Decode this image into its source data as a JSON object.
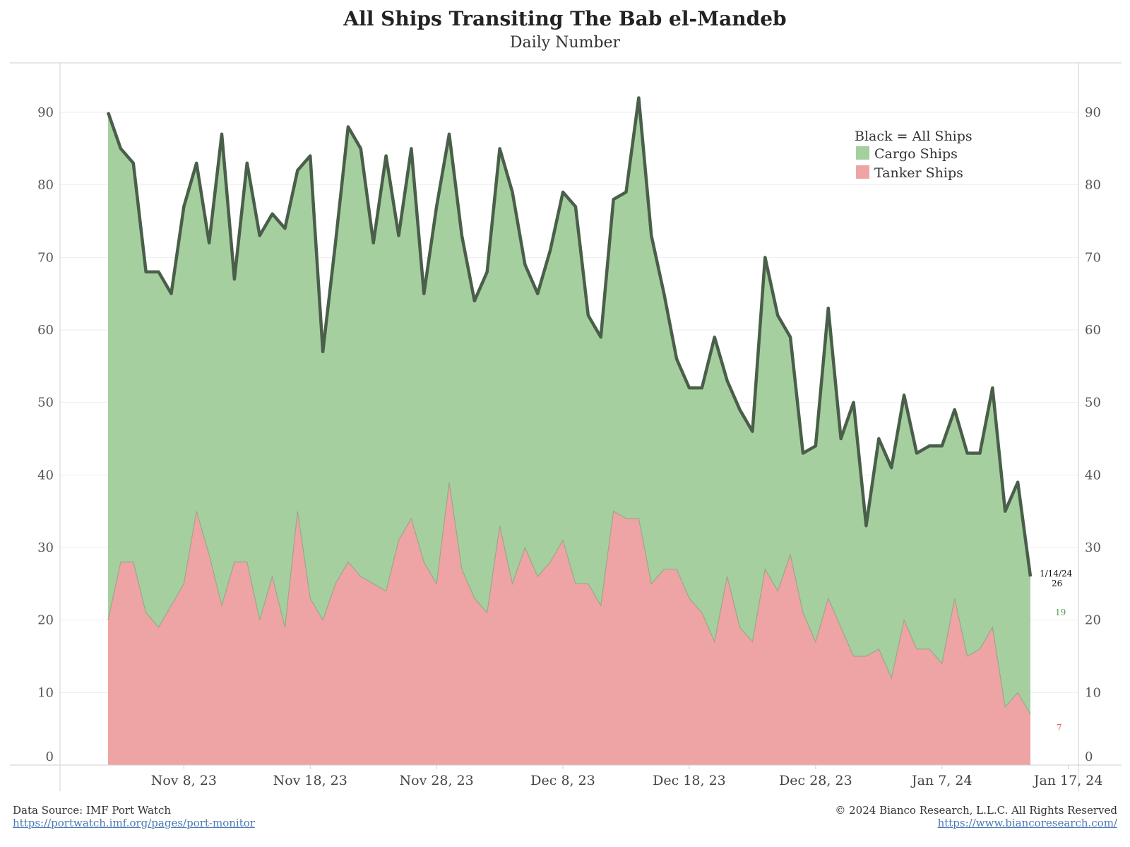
{
  "chart_data": {
    "type": "area",
    "title": "All Ships Transiting The Bab el-Mandeb",
    "subtitle": "Daily Number",
    "x_start": "2023-11-02",
    "x_end": "2024-01-14",
    "xlim": [
      "2023-10-29",
      "2024-01-17"
    ],
    "x_tick_labels": [
      "Nov 8, 23",
      "Nov 18, 23",
      "Nov 28, 23",
      "Dec 8, 23",
      "Dec 18, 23",
      "Dec 28, 23",
      "Jan 7, 24",
      "Jan 17, 24"
    ],
    "y_ticks": [
      0,
      10,
      20,
      30,
      40,
      50,
      60,
      70,
      80,
      90
    ],
    "ylim": [
      0,
      96
    ],
    "grid": true,
    "legend_position": "top-right",
    "legend": [
      "Black = All Ships",
      "Cargo Ships",
      "Tanker Ships"
    ],
    "series": [
      {
        "name": "All Ships",
        "color": "#4a5f4a",
        "values": [
          90,
          85,
          83,
          68,
          68,
          65,
          77,
          83,
          72,
          87,
          67,
          83,
          73,
          76,
          74,
          82,
          84,
          57,
          72,
          88,
          85,
          72,
          84,
          73,
          85,
          65,
          77,
          87,
          73,
          64,
          68,
          85,
          79,
          69,
          65,
          71,
          79,
          77,
          62,
          59,
          78,
          79,
          92,
          73,
          65,
          56,
          52,
          52,
          59,
          53,
          49,
          46,
          70,
          62,
          59,
          43,
          44,
          63,
          45,
          50,
          33,
          45,
          41,
          51,
          43,
          44,
          44,
          49,
          43,
          43,
          52,
          35,
          39,
          26
        ]
      },
      {
        "name": "Cargo Ships",
        "color": "#a6cfa0",
        "values": [
          70,
          57,
          55,
          47,
          49,
          43,
          52,
          48,
          43,
          65,
          39,
          55,
          53,
          50,
          55,
          47,
          61,
          37,
          47,
          60,
          59,
          47,
          60,
          42,
          51,
          37,
          52,
          48,
          46,
          41,
          47,
          52,
          54,
          39,
          39,
          43,
          48,
          52,
          37,
          37,
          43,
          45,
          58,
          48,
          38,
          29,
          29,
          31,
          42,
          27,
          30,
          29,
          43,
          38,
          30,
          22,
          27,
          40,
          26,
          35,
          18,
          29,
          29,
          31,
          27,
          28,
          30,
          26,
          28,
          27,
          33,
          27,
          29,
          19
        ]
      },
      {
        "name": "Tanker Ships",
        "color": "#eea4a4",
        "values": [
          20,
          28,
          28,
          21,
          19,
          22,
          25,
          35,
          29,
          22,
          28,
          28,
          20,
          26,
          19,
          35,
          23,
          20,
          25,
          28,
          26,
          25,
          24,
          31,
          34,
          28,
          25,
          39,
          27,
          23,
          21,
          33,
          25,
          30,
          26,
          28,
          31,
          25,
          25,
          22,
          35,
          34,
          34,
          25,
          27,
          27,
          23,
          21,
          17,
          26,
          19,
          17,
          27,
          24,
          29,
          21,
          17,
          23,
          19,
          15,
          15,
          16,
          12,
          20,
          16,
          16,
          14,
          23,
          15,
          16,
          19,
          8,
          10,
          7
        ]
      }
    ],
    "annotations": {
      "last_date": "1/14/24",
      "last_all": "26",
      "last_cargo": "19",
      "last_tanker": "7"
    }
  },
  "legend_labels": {
    "all": "Black = All Ships",
    "cargo": "Cargo Ships",
    "tanker": "Tanker Ships"
  },
  "footer": {
    "source_label": "Data Source: IMF Port Watch",
    "source_link": "https://portwatch.imf.org/pages/port-monitor",
    "copyright": "© 2024 Bianco Research, L.L.C. All Rights Reserved",
    "site_link": "https://www.biancoresearch.com/"
  }
}
